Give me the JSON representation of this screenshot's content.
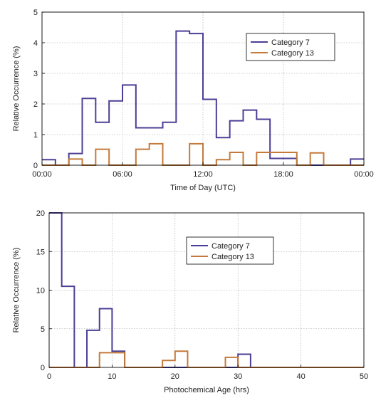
{
  "chart_data": [
    {
      "type": "line",
      "step": true,
      "xlabel": "Time of Day (UTC)",
      "ylabel": "Relative Occurrence (%)",
      "xlim": [
        0,
        24
      ],
      "ylim": [
        0,
        5
      ],
      "x_ticks": [
        0,
        6,
        12,
        18,
        24
      ],
      "x_tick_labels": [
        "00:00",
        "06:00",
        "12:00",
        "18:00",
        "00:00"
      ],
      "y_ticks": [
        0,
        1,
        2,
        3,
        4,
        5
      ],
      "y_tick_labels": [
        "0",
        "1",
        "2",
        "3",
        "4",
        "5"
      ],
      "grid": true,
      "legend_position": "top-right",
      "bin_width": 1,
      "x_unit": "hours",
      "series": [
        {
          "name": "Category 7",
          "color": "#4a3f96",
          "bin_starts": [
            0,
            1,
            2,
            3,
            4,
            5,
            6,
            7,
            8,
            9,
            10,
            11,
            12,
            13,
            14,
            15,
            16,
            17,
            18,
            19,
            20,
            21,
            22,
            23
          ],
          "values": [
            0.18,
            0,
            0.38,
            2.18,
            1.4,
            2.1,
            2.62,
            1.22,
            1.22,
            1.4,
            4.38,
            4.3,
            2.15,
            0.9,
            1.45,
            1.8,
            1.5,
            0.22,
            0.22,
            0,
            0,
            0,
            0,
            0.2
          ]
        },
        {
          "name": "Category 13",
          "color": "#c47a3a",
          "bin_starts": [
            0,
            1,
            2,
            3,
            4,
            5,
            6,
            7,
            8,
            9,
            10,
            11,
            12,
            13,
            14,
            15,
            16,
            17,
            18,
            19,
            20,
            21,
            22,
            23
          ],
          "values": [
            0,
            0,
            0.2,
            0,
            0.52,
            0,
            0,
            0.52,
            0.7,
            0,
            0,
            0.7,
            0,
            0.18,
            0.42,
            0,
            0.42,
            0.42,
            0.42,
            0,
            0.4,
            0,
            0,
            0
          ]
        }
      ]
    },
    {
      "type": "line",
      "step": true,
      "xlabel": "Photochemical Age (hrs)",
      "ylabel": "Relative Occurrence (%)",
      "xlim": [
        0,
        50
      ],
      "ylim": [
        0,
        20
      ],
      "x_ticks": [
        0,
        10,
        20,
        30,
        40,
        50
      ],
      "x_tick_labels": [
        "0",
        "10",
        "20",
        "30",
        "40",
        "50"
      ],
      "y_ticks": [
        0,
        5,
        10,
        15,
        20
      ],
      "y_tick_labels": [
        "0",
        "5",
        "10",
        "15",
        "20"
      ],
      "grid": true,
      "legend_position": "top-center",
      "bin_width": 2,
      "series": [
        {
          "name": "Category 7",
          "color": "#4a3f96",
          "bin_starts": [
            0,
            2,
            4,
            6,
            8,
            10,
            12,
            14,
            16,
            18,
            20,
            22,
            24,
            26,
            28,
            30,
            32,
            34,
            36,
            38,
            40,
            42,
            44,
            46,
            48
          ],
          "values": [
            20,
            10.5,
            0,
            4.8,
            7.6,
            2.1,
            0,
            0,
            0,
            0,
            0,
            0,
            0,
            0,
            0,
            1.7,
            0,
            0,
            0,
            0,
            0,
            0,
            0,
            0,
            0
          ]
        },
        {
          "name": "Category 13",
          "color": "#c47a3a",
          "bin_starts": [
            0,
            2,
            4,
            6,
            8,
            10,
            12,
            14,
            16,
            18,
            20,
            22,
            24,
            26,
            28,
            30,
            32,
            34,
            36,
            38,
            40,
            42,
            44,
            46,
            48
          ],
          "values": [
            0,
            0,
            0,
            0,
            1.9,
            1.9,
            0,
            0,
            0,
            0.9,
            2.1,
            0,
            0,
            0,
            1.3,
            0,
            0,
            0,
            0,
            0,
            0,
            0,
            0,
            0,
            0
          ]
        }
      ]
    }
  ]
}
